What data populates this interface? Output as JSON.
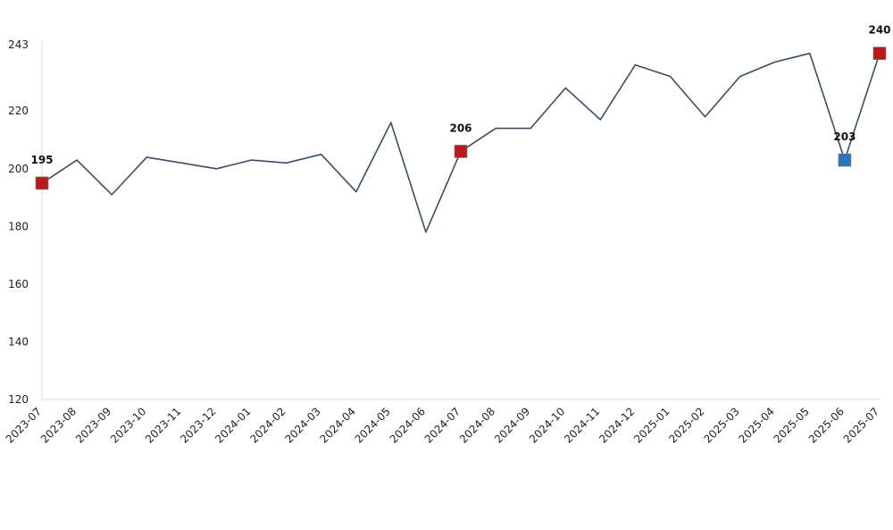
{
  "chart_data": {
    "type": "line",
    "title": "",
    "xlabel": "",
    "ylabel": "",
    "categories": [
      "2023-07",
      "2023-08",
      "2023-09",
      "2023-10",
      "2023-11",
      "2023-12",
      "2024-01",
      "2024-02",
      "2024-03",
      "2024-04",
      "2024-05",
      "2024-06",
      "2024-07",
      "2024-08",
      "2024-09",
      "2024-10",
      "2024-11",
      "2024-12",
      "2025-01",
      "2025-02",
      "2025-03",
      "2025-04",
      "2025-05",
      "2025-06",
      "2025-07"
    ],
    "series": [
      {
        "values": [
          195,
          203,
          191,
          204,
          202,
          200,
          203,
          202,
          205,
          192,
          216,
          178,
          206,
          214,
          214,
          228,
          217,
          236,
          232,
          218,
          232,
          237,
          240,
          203,
          240
        ]
      }
    ],
    "ylim": [
      120,
      243
    ],
    "yticks": [
      120,
      140,
      160,
      180,
      200,
      220,
      243
    ],
    "grid": false,
    "legend": "none",
    "highlighted_points": [
      {
        "category": "2023-07",
        "label": "195",
        "color": "#b71c1c"
      },
      {
        "category": "2024-07",
        "label": "206",
        "color": "#b71c1c"
      },
      {
        "category": "2025-06",
        "label": "203",
        "color": "#2e75b6"
      },
      {
        "category": "2025-07",
        "label": "240",
        "color": "#b71c1c"
      }
    ],
    "line_color": "#3a4f63"
  }
}
